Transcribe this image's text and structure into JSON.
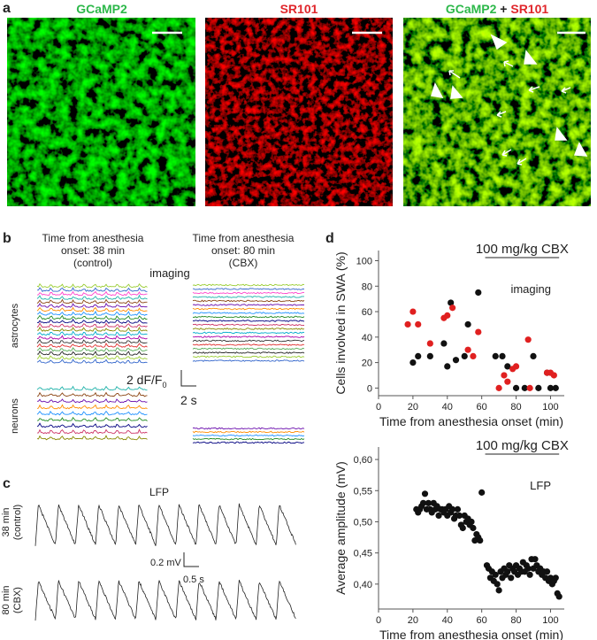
{
  "panel_a": {
    "letter": "a",
    "labels": [
      "GCaMP2",
      "SR101"
    ],
    "merge_label": [
      "GCaMP2",
      "+",
      "SR101"
    ]
  },
  "panel_b": {
    "letter": "b",
    "left_caption": [
      "Time from anesthesia",
      "onset: 38 min",
      "(control)"
    ],
    "right_caption": [
      "Time from anesthesia",
      "onset: 80 min",
      "(CBX)"
    ],
    "method": "imaging",
    "rows": [
      "astrocytes",
      "neurons"
    ],
    "scale_y": "2 dF/F",
    "scale_y_sub": "0",
    "scale_x": "2 s"
  },
  "panel_c": {
    "letter": "c",
    "title": "LFP",
    "top_label": [
      "38 min",
      "(control)"
    ],
    "bottom_label": [
      "80 min",
      "(CBX)"
    ],
    "scale_y": "0.2 mV",
    "scale_x": "0.5 s"
  },
  "panel_d": {
    "letter": "d"
  },
  "chart_data": [
    {
      "type": "scatter",
      "ylabel": "Cells involved in SWA (%)",
      "xlabel": "Time from anesthesia onset (min)",
      "annotation": "100 mg/kg CBX",
      "annotation_range": [
        62,
        105
      ],
      "note": "imaging",
      "xlim": [
        0,
        108
      ],
      "ylim": [
        -6,
        108
      ],
      "xticks": [
        0,
        20,
        40,
        60,
        80,
        100
      ],
      "yticks": [
        0,
        20,
        40,
        60,
        80,
        100
      ],
      "series": [
        {
          "color": "#111111",
          "x": [
            20,
            23,
            30,
            38,
            40,
            42,
            45,
            50,
            52,
            58,
            68,
            72,
            75,
            80,
            85,
            90,
            93,
            98,
            100,
            103
          ],
          "values": [
            20,
            25,
            25,
            35,
            17,
            67,
            22,
            25,
            50,
            75,
            25,
            25,
            17,
            0,
            0,
            25,
            0,
            12,
            0,
            0
          ]
        },
        {
          "color": "#e02020",
          "x": [
            17,
            20,
            23,
            30,
            38,
            40,
            43,
            52,
            55,
            58,
            70,
            73,
            75,
            78,
            80,
            87,
            88,
            98,
            100,
            102
          ],
          "values": [
            50,
            60,
            50,
            35,
            55,
            57,
            63,
            30,
            25,
            44,
            0,
            10,
            5,
            15,
            17,
            38,
            0,
            12,
            12,
            10
          ]
        }
      ]
    },
    {
      "type": "scatter",
      "ylabel": "Average amplitude (mV)",
      "xlabel": "Time from anesthesia onset (min)",
      "annotation": "100 mg/kg CBX",
      "annotation_range": [
        62,
        105
      ],
      "note": "LFP",
      "xlim": [
        0,
        108
      ],
      "ylim": [
        0.36,
        0.62
      ],
      "xticks": [
        0,
        20,
        40,
        60,
        80,
        100
      ],
      "yticks": [
        {
          "value": 0.4,
          "label": "0,40"
        },
        {
          "value": 0.45,
          "label": "0,45"
        },
        {
          "value": 0.5,
          "label": "0,50"
        },
        {
          "value": 0.55,
          "label": "0,55"
        },
        {
          "value": 0.6,
          "label": "0,60"
        }
      ],
      "series": [
        {
          "color": "#111111",
          "x": [
            22,
            23,
            24,
            25,
            26,
            27,
            28,
            29,
            30,
            31,
            32,
            33,
            34,
            35,
            36,
            37,
            38,
            39,
            40,
            41,
            42,
            43,
            44,
            45,
            46,
            47,
            48,
            49,
            50,
            51,
            52,
            53,
            54,
            55,
            56,
            57,
            58,
            59,
            60,
            63,
            64,
            65,
            66,
            67,
            68,
            69,
            70,
            71,
            72,
            73,
            74,
            75,
            76,
            77,
            78,
            79,
            80,
            81,
            82,
            83,
            84,
            85,
            86,
            87,
            88,
            89,
            90,
            91,
            92,
            93,
            94,
            95,
            96,
            97,
            98,
            99,
            100,
            101,
            102,
            103,
            104,
            105
          ],
          "values": [
            0.52,
            0.515,
            0.52,
            0.525,
            0.53,
            0.545,
            0.52,
            0.53,
            0.52,
            0.515,
            0.53,
            0.52,
            0.525,
            0.51,
            0.52,
            0.52,
            0.515,
            0.52,
            0.51,
            0.525,
            0.515,
            0.52,
            0.505,
            0.51,
            0.52,
            0.51,
            0.495,
            0.49,
            0.51,
            0.5,
            0.505,
            0.495,
            0.5,
            0.49,
            0.47,
            0.48,
            0.475,
            0.47,
            0.547,
            0.43,
            0.425,
            0.41,
            0.42,
            0.405,
            0.415,
            0.4,
            0.39,
            0.42,
            0.41,
            0.425,
            0.415,
            0.42,
            0.43,
            0.41,
            0.425,
            0.42,
            0.43,
            0.415,
            0.425,
            0.42,
            0.435,
            0.42,
            0.43,
            0.425,
            0.415,
            0.44,
            0.425,
            0.44,
            0.43,
            0.42,
            0.425,
            0.415,
            0.42,
            0.41,
            0.42,
            0.405,
            0.41,
            0.4,
            0.405,
            0.41,
            0.385,
            0.38
          ]
        }
      ]
    }
  ]
}
